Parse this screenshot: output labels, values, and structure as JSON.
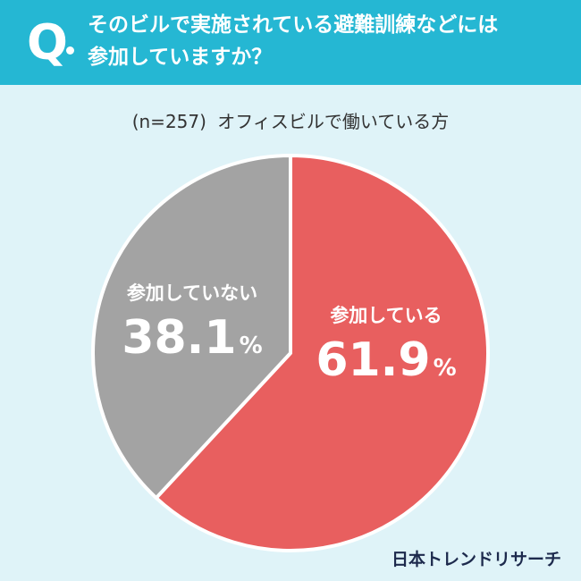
{
  "header": {
    "q_letter": "Q",
    "question_line1": "そのビルで実施されている避難訓練などには",
    "question_line2": "参加していますか？"
  },
  "sample": {
    "n_label": "(n=257)",
    "group": "オフィスビルで働いている方"
  },
  "brand": "日本トレンドリサーチ",
  "colors": {
    "header_bg": "#25b7d3",
    "background": "#dff3f8",
    "participating": "#e85f5f",
    "not_participating": "#a3a3a3"
  },
  "chart_data": {
    "type": "pie",
    "title": "",
    "slices": [
      {
        "label": "参加している",
        "value": 61.9,
        "value_label": "61.9",
        "unit": "%",
        "color": "#e85f5f"
      },
      {
        "label": "参加していない",
        "value": 38.1,
        "value_label": "38.1",
        "unit": "%",
        "color": "#a3a3a3"
      }
    ]
  }
}
